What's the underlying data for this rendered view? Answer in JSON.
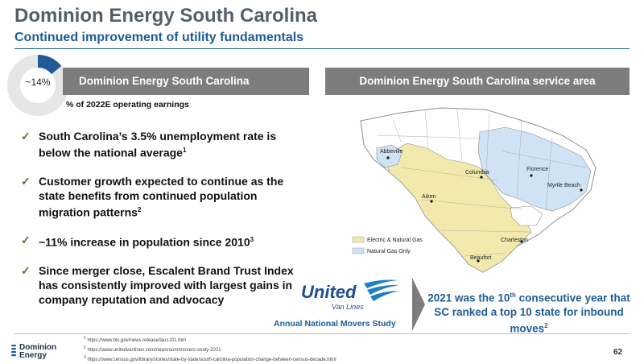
{
  "header": {
    "title": "Dominion Energy South Carolina",
    "subtitle": "Continued improvement of utility fundamentals"
  },
  "donut": {
    "label": "~14%",
    "percent": 14,
    "fill_color": "#1f5c97",
    "track_color": "#e6e6e6"
  },
  "left_panel": {
    "heading": "Dominion Energy South Carolina",
    "caption": "% of 2022E operating earnings"
  },
  "right_panel": {
    "heading": "Dominion Energy South Carolina service area"
  },
  "bullets": [
    {
      "text": "South Carolina’s 3.5% unemployment rate is below the national average",
      "note": "1"
    },
    {
      "text": "Customer growth expected to continue as the state benefits from continued population migration patterns",
      "note": "2"
    },
    {
      "text": "~11% increase in population since 2010",
      "note": "3"
    },
    {
      "text": "Since merger close, Escalent Brand Trust Index has consistently improved with largest gains in company reputation and advocacy",
      "note": ""
    }
  ],
  "united_logo": {
    "line1": "United",
    "line2": "Van Lines"
  },
  "movers_caption": "Annual National Movers Study",
  "callout": {
    "part1": "2021 was the 10",
    "sup1": "th",
    "part2": " consecutive year that SC ranked a top 10 state for inbound moves",
    "sup2": "2"
  },
  "map": {
    "cities": [
      "Abbeville",
      "Columbia",
      "Florence",
      "Myrtle Beach",
      "Aiken",
      "Charleston",
      "Beaufort"
    ],
    "legend": [
      {
        "label": "Electric & Natural Gas",
        "color": "#f2e9ad"
      },
      {
        "label": "Natural Gas Only",
        "color": "#cfe3f5"
      }
    ]
  },
  "footnotes": [
    {
      "num": "1",
      "text": "https://www.bls.gov/news.release/laus.t01.htm"
    },
    {
      "num": "2",
      "text": "https://www.unitedvanlines.com/newsroom/movers-study-2021"
    },
    {
      "num": "3",
      "text": "https://www.census.gov/library/stories/state-by-state/south-carolina-population-change-between-census-decade.html"
    }
  ],
  "logo": {
    "line1": "Dominion",
    "line2": "Energy"
  },
  "page_number": "62"
}
